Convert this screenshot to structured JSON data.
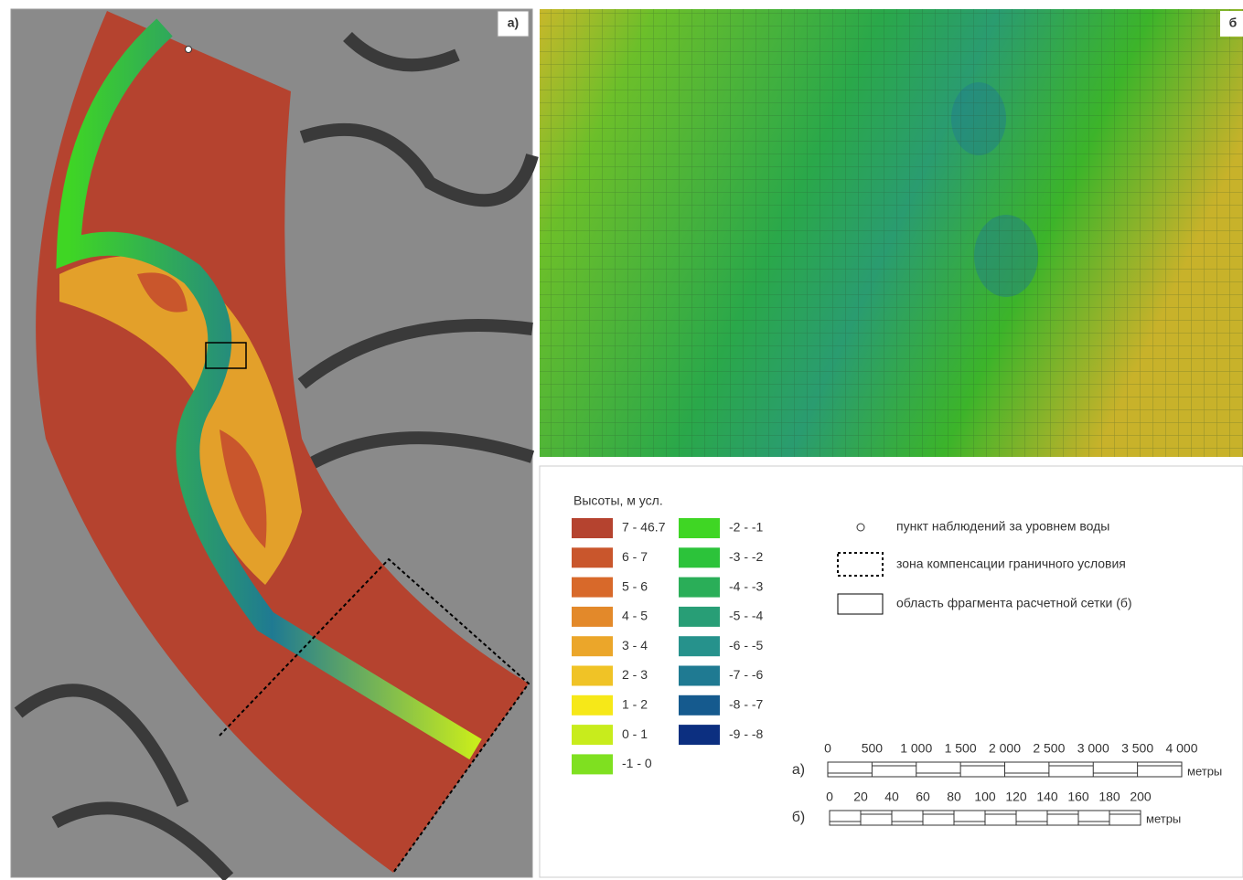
{
  "panels": {
    "a": {
      "label": "а)"
    },
    "b": {
      "label": "б"
    }
  },
  "legend": {
    "title": "Высоты, м усл.",
    "items": [
      {
        "label": "7 - 46.7",
        "color": "#b5432f"
      },
      {
        "label": "6 - 7",
        "color": "#c9562c"
      },
      {
        "label": "5 - 6",
        "color": "#d8692a"
      },
      {
        "label": "4 - 5",
        "color": "#e3892a"
      },
      {
        "label": "3 - 4",
        "color": "#eba62a"
      },
      {
        "label": "2 - 3",
        "color": "#f0c326"
      },
      {
        "label": "1 - 2",
        "color": "#f6e818"
      },
      {
        "label": "0 - 1",
        "color": "#c8ec1c"
      },
      {
        "label": "-1 - 0",
        "color": "#7fe020"
      },
      {
        "label": "-2 - -1",
        "color": "#3fd624"
      },
      {
        "label": "-3 - -2",
        "color": "#2cc33a"
      },
      {
        "label": "-4 - -3",
        "color": "#2aae58"
      },
      {
        "label": "-5 - -4",
        "color": "#289e76"
      },
      {
        "label": "-6 - -5",
        "color": "#26928c"
      },
      {
        "label": "-7 - -6",
        "color": "#1f7a92"
      },
      {
        "label": "-8 - -7",
        "color": "#155a8e"
      },
      {
        "label": "-9 - -8",
        "color": "#0c2f80"
      }
    ]
  },
  "symbols": [
    {
      "label": "пункт наблюдений за уровнем воды"
    },
    {
      "label": "зона компенсации граничного условия"
    },
    {
      "label": "область фрагмента расчетной сетки (б)"
    }
  ],
  "scales": [
    {
      "label": "а)",
      "ticks": [
        "0",
        "500",
        "1 000",
        "1 500",
        "2 000",
        "2 500",
        "3 000",
        "3 500",
        "4 000"
      ],
      "unit": "метры"
    },
    {
      "label": "б)",
      "ticks": [
        "0",
        "20",
        "40",
        "60",
        "80",
        "100",
        "120",
        "140",
        "160",
        "180",
        "200"
      ],
      "unit": "метры"
    }
  ]
}
